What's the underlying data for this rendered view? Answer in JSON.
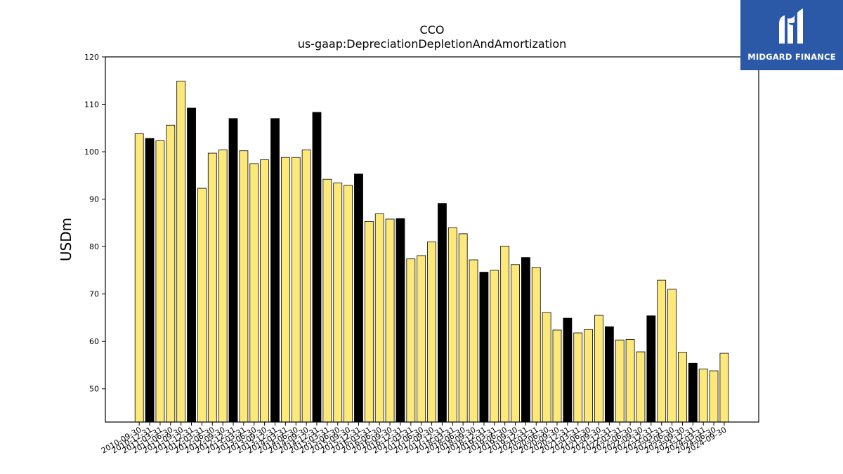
{
  "logo": {
    "text": "MIDGARD FINANCE"
  },
  "colors": {
    "annual": "#000000",
    "quarter": "#fde97a",
    "edge": "#000000",
    "logo_bg": "#2b59a8"
  },
  "chart_data": {
    "type": "bar",
    "title": "CCO",
    "subtitle": "us-gaap:DepreciationDepletionAndAmortization",
    "ylabel": "USDm",
    "xlabel": "",
    "ylim": [
      43,
      120
    ],
    "yticks": [
      50,
      60,
      70,
      80,
      90,
      100,
      110,
      120
    ],
    "grid": false,
    "categories": [
      "2010-09-30",
      "2010-12-31",
      "2011-03-31",
      "2011-06-30",
      "2011-09-30",
      "2011-12-31",
      "2012-03-31",
      "2012-06-30",
      "2012-09-30",
      "2012-12-31",
      "2013-03-31",
      "2013-06-30",
      "2013-09-30",
      "2013-12-31",
      "2014-03-31",
      "2014-06-30",
      "2014-09-30",
      "2014-12-31",
      "2015-03-31",
      "2015-06-30",
      "2015-09-30",
      "2015-12-31",
      "2016-03-31",
      "2016-06-30",
      "2016-09-30",
      "2016-12-31",
      "2017-03-31",
      "2017-06-30",
      "2017-09-30",
      "2017-12-31",
      "2018-03-31",
      "2018-06-30",
      "2018-09-30",
      "2018-12-31",
      "2019-03-31",
      "2019-06-30",
      "2019-09-30",
      "2019-12-31",
      "2020-03-31",
      "2020-06-30",
      "2020-09-30",
      "2020-12-31",
      "2021-03-31",
      "2021-06-30",
      "2021-09-30",
      "2021-12-31",
      "2022-03-31",
      "2022-06-30",
      "2022-09-30",
      "2022-12-31",
      "2023-03-31",
      "2023-06-30",
      "2023-09-30",
      "2023-12-31",
      "2024-03-31",
      "2024-06-30",
      "2024-09-30"
    ],
    "values": [
      103.8,
      102.8,
      102.3,
      105.6,
      114.9,
      109.2,
      92.3,
      99.7,
      100.4,
      107.0,
      100.2,
      97.5,
      98.3,
      107.0,
      98.8,
      98.8,
      100.4,
      108.3,
      94.2,
      93.4,
      92.9,
      95.3,
      85.3,
      86.9,
      85.8,
      85.9,
      77.4,
      78.1,
      81.0,
      89.1,
      84.0,
      82.7,
      77.2,
      74.6,
      75.0,
      80.1,
      76.2,
      77.7,
      75.6,
      66.1,
      62.4,
      64.9,
      61.8,
      62.5,
      65.5,
      63.1,
      60.3,
      60.4,
      57.8,
      65.4,
      72.9,
      71.0,
      57.7,
      55.4,
      54.2,
      53.8,
      57.5
    ],
    "annual_flags": [
      0,
      1,
      0,
      0,
      0,
      1,
      0,
      0,
      0,
      1,
      0,
      0,
      0,
      1,
      0,
      0,
      0,
      1,
      0,
      0,
      0,
      1,
      0,
      0,
      0,
      1,
      0,
      0,
      0,
      1,
      0,
      0,
      0,
      1,
      0,
      0,
      0,
      1,
      0,
      0,
      0,
      1,
      0,
      0,
      0,
      1,
      0,
      0,
      0,
      1,
      0,
      0,
      0,
      1,
      0,
      0,
      0
    ]
  }
}
